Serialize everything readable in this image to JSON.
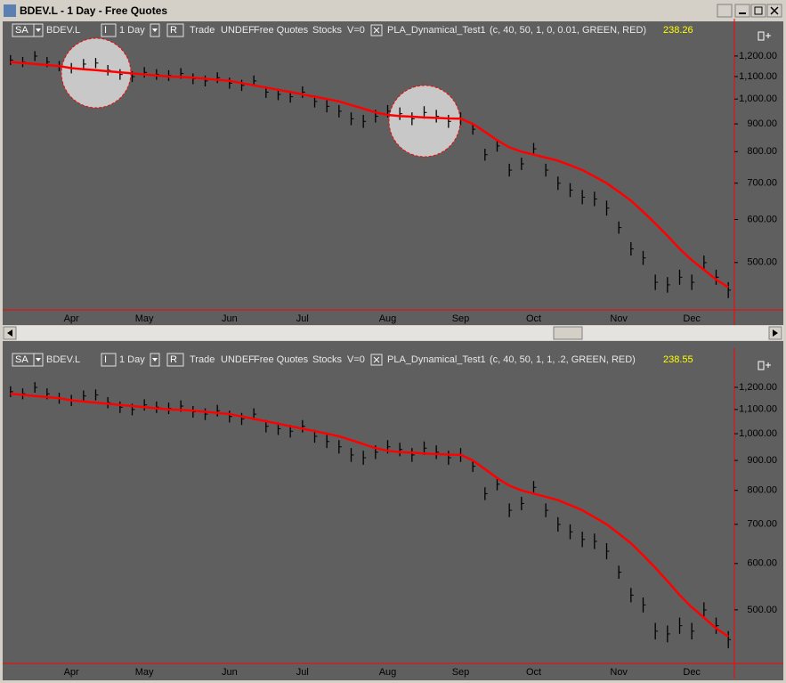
{
  "window": {
    "title": "BDEV.L - 1 Day - Free Quotes"
  },
  "chart_data": [
    {
      "type": "ohlc",
      "toolbar": {
        "symbol_box": "SA",
        "symbol": "BDEV.L",
        "interval_box": "I",
        "interval": "1 Day",
        "r_box": "R",
        "items": [
          "Trade",
          "UNDEF",
          "Free Quotes",
          "Stocks",
          "V=0"
        ],
        "indicator": "PLA_Dynamical_Test1",
        "params": "(c, 40, 50, 1, 0, 0.01, GREEN, RED)",
        "indicator_value": 238.26
      },
      "categories": [
        null,
        null,
        null,
        null,
        null,
        "Apr",
        null,
        null,
        null,
        null,
        null,
        "May",
        null,
        null,
        null,
        null,
        null,
        null,
        "Jun",
        null,
        null,
        null,
        null,
        null,
        "Jul",
        null,
        null,
        null,
        null,
        null,
        null,
        "Aug",
        null,
        null,
        null,
        null,
        null,
        "Sep",
        null,
        null,
        null,
        null,
        null,
        "Oct",
        null,
        null,
        null,
        null,
        null,
        null,
        "Nov",
        null,
        null,
        null,
        null,
        null,
        "Dec",
        null,
        null,
        null
      ],
      "high": [
        1205,
        1195,
        1225,
        1195,
        1175,
        1165,
        1185,
        1190,
        1155,
        1135,
        1125,
        1145,
        1135,
        1130,
        1140,
        1115,
        1105,
        1120,
        1095,
        1085,
        1105,
        1055,
        1045,
        1035,
        1055,
        1015,
        995,
        975,
        945,
        935,
        955,
        975,
        965,
        945,
        970,
        955,
        935,
        945,
        900,
        810,
        840,
        760,
        780,
        830,
        760,
        720,
        700,
        680,
        675,
        650,
        595,
        545,
        525,
        475,
        470,
        485,
        475,
        515,
        485,
        460
      ],
      "low": [
        1155,
        1145,
        1175,
        1145,
        1125,
        1115,
        1135,
        1140,
        1105,
        1085,
        1075,
        1095,
        1085,
        1080,
        1090,
        1065,
        1055,
        1070,
        1045,
        1035,
        1055,
        1005,
        995,
        985,
        1005,
        965,
        945,
        925,
        895,
        885,
        905,
        925,
        915,
        895,
        920,
        905,
        885,
        895,
        860,
        770,
        800,
        720,
        740,
        790,
        720,
        680,
        660,
        640,
        635,
        610,
        565,
        515,
        495,
        445,
        440,
        455,
        445,
        485,
        455,
        430
      ],
      "bar_color": "#000000",
      "ma": {
        "color": "#ff0000",
        "values": [
          1170,
          1165,
          1160,
          1155,
          1150,
          1140,
          1135,
          1130,
          1125,
          1120,
          1115,
          1110,
          1105,
          1100,
          1098,
          1095,
          1090,
          1085,
          1080,
          1070,
          1060,
          1050,
          1040,
          1030,
          1020,
          1010,
          1000,
          990,
          975,
          960,
          945,
          935,
          930,
          928,
          925,
          923,
          921,
          920,
          900,
          870,
          840,
          815,
          800,
          790,
          780,
          770,
          755,
          740,
          720,
          700,
          675,
          650,
          620,
          590,
          560,
          530,
          505,
          485,
          465,
          450
        ]
      },
      "log_scale": true,
      "ylim": [
        409,
        1284
      ],
      "yticks": [
        {
          "value": 500,
          "label": "500.00"
        },
        {
          "value": 600,
          "label": "600.00"
        },
        {
          "value": 700,
          "label": "700.00"
        },
        {
          "value": 800,
          "label": "800.00"
        },
        {
          "value": 900,
          "label": "900.00"
        },
        {
          "value": 1000,
          "label": "1,000.00"
        },
        {
          "value": 1100,
          "label": "1,100.00"
        },
        {
          "value": 1200,
          "label": "1,200.00"
        }
      ],
      "axis_color": "#ff0000"
    },
    {
      "type": "ohlc",
      "toolbar": {
        "symbol_box": "SA",
        "symbol": "BDEV.L",
        "interval_box": "I",
        "interval": "1 Day",
        "r_box": "R",
        "items": [
          "Trade",
          "UNDEF",
          "Free Quotes",
          "Stocks",
          "V=0"
        ],
        "indicator": "PLA_Dynamical_Test1",
        "params": "(c, 40, 50, 1, 1, .2, GREEN, RED)",
        "indicator_value": 238.55
      },
      "categories": [
        null,
        null,
        null,
        null,
        null,
        "Apr",
        null,
        null,
        null,
        null,
        null,
        "May",
        null,
        null,
        null,
        null,
        null,
        null,
        "Jun",
        null,
        null,
        null,
        null,
        null,
        "Jul",
        null,
        null,
        null,
        null,
        null,
        null,
        "Aug",
        null,
        null,
        null,
        null,
        null,
        "Sep",
        null,
        null,
        null,
        null,
        null,
        "Oct",
        null,
        null,
        null,
        null,
        null,
        null,
        "Nov",
        null,
        null,
        null,
        null,
        null,
        "Dec",
        null,
        null,
        null
      ],
      "high": [
        1205,
        1195,
        1225,
        1195,
        1175,
        1165,
        1185,
        1190,
        1155,
        1135,
        1125,
        1145,
        1135,
        1130,
        1140,
        1115,
        1105,
        1120,
        1095,
        1085,
        1105,
        1055,
        1045,
        1035,
        1055,
        1015,
        995,
        975,
        945,
        935,
        955,
        975,
        965,
        945,
        970,
        955,
        935,
        945,
        900,
        810,
        840,
        760,
        780,
        830,
        760,
        720,
        700,
        680,
        675,
        650,
        595,
        545,
        525,
        475,
        470,
        485,
        475,
        515,
        485,
        460
      ],
      "low": [
        1155,
        1145,
        1175,
        1145,
        1125,
        1115,
        1135,
        1140,
        1105,
        1085,
        1075,
        1095,
        1085,
        1080,
        1090,
        1065,
        1055,
        1070,
        1045,
        1035,
        1055,
        1005,
        995,
        985,
        1005,
        965,
        945,
        925,
        895,
        885,
        905,
        925,
        915,
        895,
        920,
        905,
        885,
        895,
        860,
        770,
        800,
        720,
        740,
        790,
        720,
        680,
        660,
        640,
        635,
        610,
        565,
        515,
        495,
        445,
        440,
        455,
        445,
        485,
        455,
        430
      ],
      "bar_color": "#000000",
      "ma": {
        "color": "#ff0000",
        "values": [
          1170,
          1165,
          1160,
          1155,
          1150,
          1140,
          1135,
          1130,
          1125,
          1120,
          1115,
          1110,
          1105,
          1100,
          1098,
          1095,
          1090,
          1085,
          1080,
          1070,
          1060,
          1050,
          1040,
          1030,
          1020,
          1010,
          1000,
          990,
          975,
          960,
          945,
          935,
          930,
          928,
          925,
          923,
          921,
          920,
          900,
          870,
          840,
          815,
          800,
          790,
          780,
          770,
          755,
          740,
          720,
          700,
          675,
          650,
          620,
          590,
          560,
          530,
          505,
          485,
          465,
          450
        ]
      },
      "log_scale": true,
      "ylim": [
        405,
        1287
      ],
      "yticks": [
        {
          "value": 500,
          "label": "500.00"
        },
        {
          "value": 600,
          "label": "600.00"
        },
        {
          "value": 700,
          "label": "700.00"
        },
        {
          "value": 800,
          "label": "800.00"
        },
        {
          "value": 900,
          "label": "900.00"
        },
        {
          "value": 1000,
          "label": "1,000.00"
        },
        {
          "value": 1100,
          "label": "1,100.00"
        },
        {
          "value": 1200,
          "label": "1,200.00"
        }
      ],
      "axis_color": "#ff0000"
    }
  ]
}
